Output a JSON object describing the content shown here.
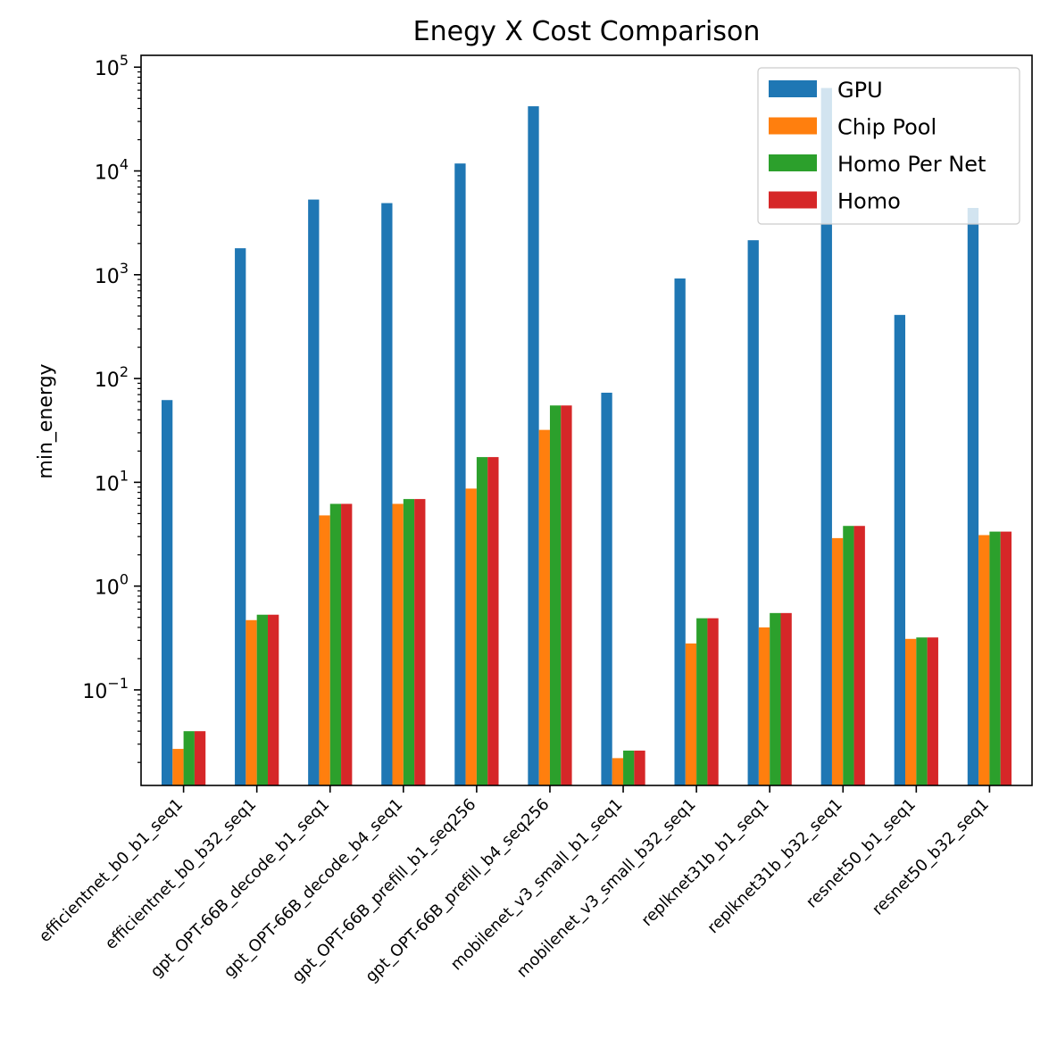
{
  "chart_data": {
    "type": "bar",
    "title": "Enegy X Cost Comparison",
    "xlabel": "",
    "ylabel": "min_energy",
    "yscale": "log",
    "ylim": [
      0.012,
      130000
    ],
    "yticks": [
      {
        "value": 0.1,
        "base": "10",
        "exp": "−1"
      },
      {
        "value": 1,
        "base": "10",
        "exp": "0"
      },
      {
        "value": 10,
        "base": "10",
        "exp": "1"
      },
      {
        "value": 100,
        "base": "10",
        "exp": "2"
      },
      {
        "value": 1000,
        "base": "10",
        "exp": "3"
      },
      {
        "value": 10000,
        "base": "10",
        "exp": "4"
      },
      {
        "value": 100000,
        "base": "10",
        "exp": "5"
      }
    ],
    "categories": [
      "efficientnet_b0_b1_seq1",
      "efficientnet_b0_b32_seq1",
      "gpt_OPT-66B_decode_b1_seq1",
      "gpt_OPT-66B_decode_b4_seq1",
      "gpt_OPT-66B_prefill_b1_seq256",
      "gpt_OPT-66B_prefill_b4_seq256",
      "mobilenet_v3_small_b1_seq1",
      "mobilenet_v3_small_b32_seq1",
      "replknet31b_b1_seq1",
      "replknet31b_b32_seq1",
      "resnet50_b1_seq1",
      "resnet50_b32_seq1"
    ],
    "series": [
      {
        "name": "GPU",
        "color": "#1f77b4",
        "values": [
          62,
          1800,
          5300,
          4900,
          11800,
          42000,
          73,
          920,
          2150,
          63000,
          410,
          4400
        ]
      },
      {
        "name": "Chip Pool",
        "color": "#ff7f0e",
        "values": [
          0.027,
          0.47,
          4.8,
          6.2,
          8.7,
          32,
          0.022,
          0.28,
          0.4,
          2.9,
          0.31,
          3.1
        ]
      },
      {
        "name": "Homo Per Net",
        "color": "#2ca02c",
        "values": [
          0.04,
          0.53,
          6.2,
          6.9,
          17.5,
          55,
          0.026,
          0.49,
          0.55,
          3.8,
          0.32,
          3.35
        ]
      },
      {
        "name": "Homo",
        "color": "#d62728",
        "values": [
          0.04,
          0.53,
          6.2,
          6.9,
          17.5,
          55,
          0.026,
          0.49,
          0.55,
          3.8,
          0.32,
          3.35
        ]
      }
    ],
    "legend": "top-right",
    "grid": false
  }
}
